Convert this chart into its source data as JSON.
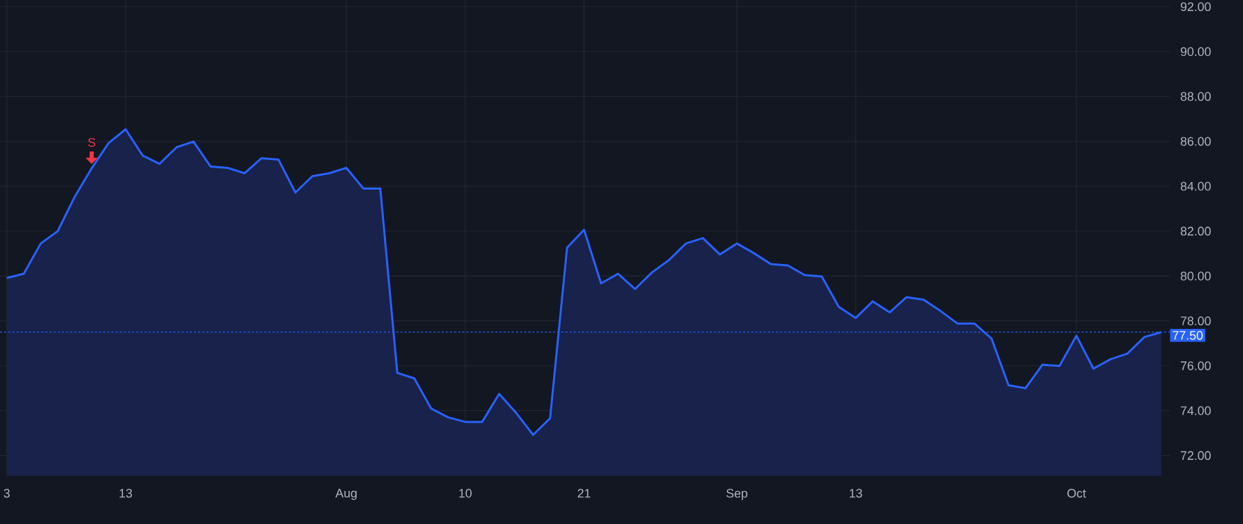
{
  "chart_data": {
    "type": "area",
    "color": "#2962ff",
    "categories": [
      "3",
      null,
      null,
      null,
      null,
      null,
      null,
      "13",
      null,
      null,
      null,
      null,
      null,
      null,
      null,
      null,
      null,
      null,
      null,
      null,
      "Aug",
      null,
      null,
      null,
      null,
      null,
      null,
      "10",
      null,
      null,
      null,
      null,
      null,
      null,
      "21",
      null,
      null,
      null,
      null,
      null,
      null,
      null,
      null,
      "Sep",
      null,
      null,
      null,
      null,
      null,
      null,
      "13",
      null,
      null,
      null,
      null,
      null,
      null,
      null,
      null,
      null,
      null,
      null,
      null,
      "Oct",
      null,
      null,
      null,
      null,
      null
    ],
    "values": [
      79.91,
      80.1,
      81.45,
      82.0,
      83.53,
      84.8,
      85.93,
      86.54,
      85.37,
      85.0,
      85.74,
      85.99,
      84.88,
      84.82,
      84.58,
      85.25,
      85.19,
      83.72,
      84.45,
      84.58,
      84.82,
      83.9,
      83.9,
      75.68,
      75.44,
      74.09,
      73.7,
      73.5,
      73.5,
      74.75,
      73.9,
      72.92,
      73.66,
      81.26,
      82.06,
      79.67,
      80.1,
      79.42,
      80.16,
      80.71,
      81.45,
      81.69,
      80.96,
      81.45,
      81.02,
      80.53,
      80.47,
      80.04,
      79.98,
      78.63,
      78.13,
      78.87,
      78.38,
      79.06,
      78.94,
      78.44,
      77.88,
      77.88,
      77.21,
      75.13,
      75.0,
      76.05,
      75.99,
      77.34,
      75.87,
      76.29,
      76.54,
      77.28,
      77.5
    ],
    "ylim": [
      71.1,
      92.3
    ],
    "yticks": [
      {
        "value": 72,
        "label": "72.00"
      },
      {
        "value": 74,
        "label": "74.00"
      },
      {
        "value": 76,
        "label": "76.00"
      },
      {
        "value": 78,
        "label": "78.00"
      },
      {
        "value": 80,
        "label": "80.00"
      },
      {
        "value": 82,
        "label": "82.00"
      },
      {
        "value": 84,
        "label": "84.00"
      },
      {
        "value": 86,
        "label": "86.00"
      },
      {
        "value": 88,
        "label": "88.00"
      },
      {
        "value": 90,
        "label": "90.00"
      },
      {
        "value": 92,
        "label": "92.00"
      }
    ],
    "grid": true,
    "ref_lines": [
      {
        "axis": "y",
        "value": 77.5,
        "label": "77.50",
        "color": "#2962ff",
        "line_style": "dotted"
      }
    ],
    "annotations": [
      {
        "text": "S",
        "y": 84.8
      }
    ]
  }
}
